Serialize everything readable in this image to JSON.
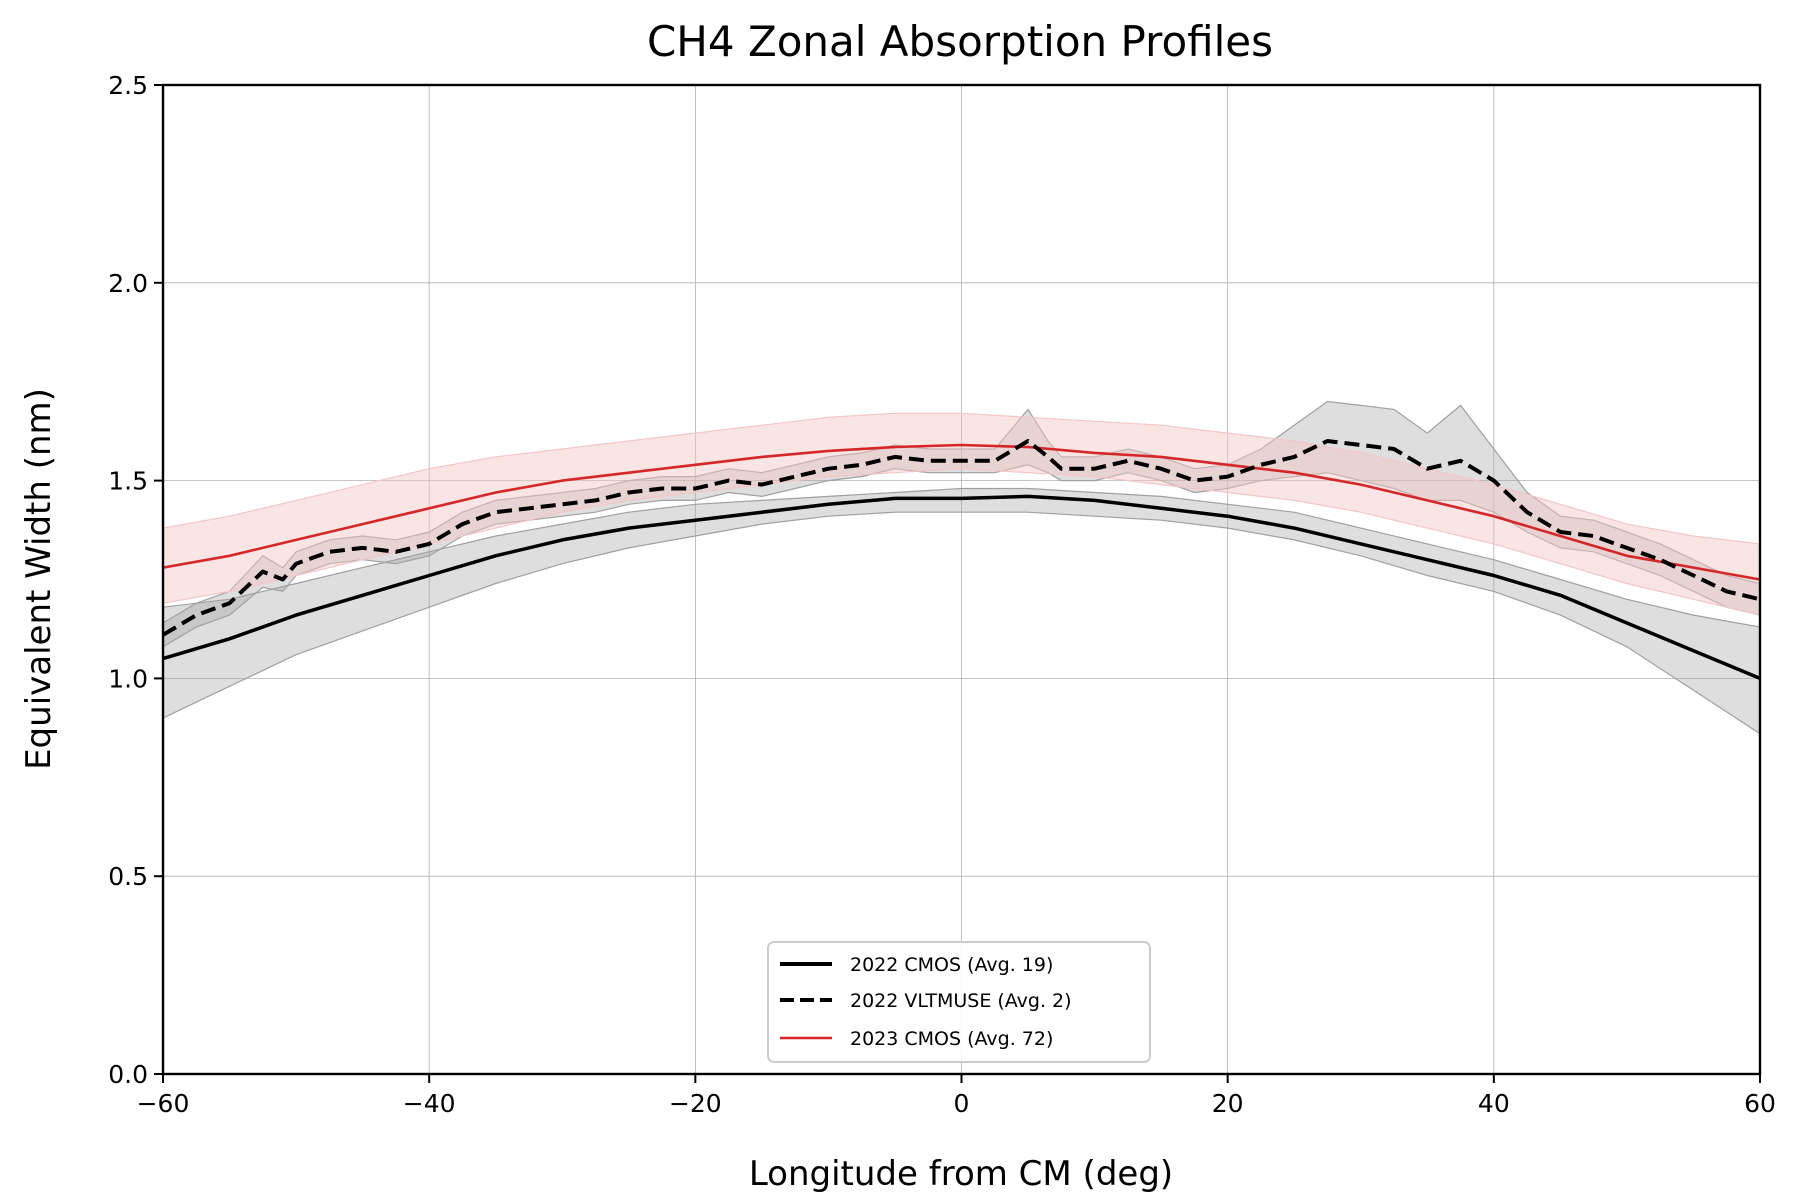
{
  "chart_data": {
    "type": "line",
    "title": "CH4 Zonal Absorption Profiles",
    "xlabel": "Longitude from CM (deg)",
    "ylabel": "Equivalent Width (nm)",
    "xlim": [
      -60,
      60
    ],
    "ylim": [
      0,
      2.5
    ],
    "xticks": [
      -60,
      -40,
      -20,
      0,
      20,
      40,
      60
    ],
    "xtick_labels": [
      "−60",
      "−40",
      "−20",
      "0",
      "20",
      "40",
      "60"
    ],
    "yticks": [
      0,
      0.5,
      1,
      1.5,
      2,
      2.5
    ],
    "ytick_labels": [
      "0.0",
      "0.5",
      "1.0",
      "1.5",
      "2.0",
      "2.5"
    ],
    "grid": true,
    "legend_position": "bottom-center",
    "series": [
      {
        "name": "2022 CMOS (Avg. 19)",
        "color": "#000000",
        "style": "solid",
        "band_color": "#a0a0a0",
        "x": [
          -60,
          -55,
          -50,
          -45,
          -40,
          -35,
          -30,
          -25,
          -20,
          -15,
          -10,
          -5,
          0,
          5,
          10,
          15,
          20,
          25,
          30,
          35,
          40,
          45,
          50,
          55,
          60
        ],
        "y": [
          1.05,
          1.1,
          1.16,
          1.21,
          1.26,
          1.31,
          1.35,
          1.38,
          1.4,
          1.42,
          1.44,
          1.455,
          1.455,
          1.46,
          1.45,
          1.43,
          1.41,
          1.38,
          1.34,
          1.3,
          1.26,
          1.21,
          1.14,
          1.07,
          1.0
        ],
        "y_lower": [
          0.9,
          0.98,
          1.06,
          1.12,
          1.18,
          1.24,
          1.29,
          1.33,
          1.36,
          1.39,
          1.41,
          1.42,
          1.42,
          1.42,
          1.41,
          1.4,
          1.38,
          1.35,
          1.31,
          1.26,
          1.22,
          1.16,
          1.08,
          0.97,
          0.86
        ],
        "y_upper": [
          1.18,
          1.2,
          1.24,
          1.28,
          1.32,
          1.36,
          1.39,
          1.42,
          1.44,
          1.45,
          1.46,
          1.47,
          1.48,
          1.48,
          1.47,
          1.46,
          1.44,
          1.42,
          1.38,
          1.34,
          1.3,
          1.25,
          1.2,
          1.16,
          1.13
        ]
      },
      {
        "name": "2022 VLTMUSE (Avg. 2)",
        "color": "#000000",
        "style": "dashed",
        "band_color": "#a0a0a0",
        "x": [
          -60,
          -57.5,
          -55,
          -52.5,
          -51,
          -50,
          -47.5,
          -45,
          -42.5,
          -40,
          -37.5,
          -35,
          -32.5,
          -30,
          -27.5,
          -25,
          -22.5,
          -20,
          -17.5,
          -15,
          -12.5,
          -10,
          -7.5,
          -5,
          -2.5,
          0,
          2.5,
          5,
          6.5,
          7.5,
          10,
          12.5,
          15,
          17.5,
          20,
          22.5,
          25,
          27.5,
          30,
          32.5,
          35,
          37.5,
          40,
          42.5,
          45,
          47.5,
          50,
          52.5,
          55,
          57.5,
          60
        ],
        "y": [
          1.11,
          1.16,
          1.19,
          1.27,
          1.25,
          1.29,
          1.32,
          1.33,
          1.32,
          1.34,
          1.39,
          1.42,
          1.43,
          1.44,
          1.45,
          1.47,
          1.48,
          1.48,
          1.5,
          1.49,
          1.51,
          1.53,
          1.54,
          1.56,
          1.55,
          1.55,
          1.55,
          1.6,
          1.56,
          1.53,
          1.53,
          1.55,
          1.53,
          1.5,
          1.51,
          1.54,
          1.56,
          1.6,
          1.59,
          1.58,
          1.53,
          1.55,
          1.5,
          1.42,
          1.37,
          1.36,
          1.33,
          1.3,
          1.26,
          1.22,
          1.2
        ],
        "y_lower": [
          1.08,
          1.13,
          1.16,
          1.23,
          1.22,
          1.26,
          1.29,
          1.3,
          1.29,
          1.31,
          1.36,
          1.39,
          1.4,
          1.41,
          1.42,
          1.44,
          1.45,
          1.45,
          1.47,
          1.46,
          1.48,
          1.5,
          1.51,
          1.53,
          1.52,
          1.52,
          1.52,
          1.54,
          1.52,
          1.5,
          1.5,
          1.52,
          1.5,
          1.47,
          1.48,
          1.5,
          1.51,
          1.52,
          1.5,
          1.48,
          1.45,
          1.45,
          1.42,
          1.37,
          1.33,
          1.32,
          1.29,
          1.26,
          1.22,
          1.18,
          1.16
        ],
        "y_upper": [
          1.14,
          1.19,
          1.22,
          1.31,
          1.28,
          1.32,
          1.35,
          1.36,
          1.35,
          1.37,
          1.42,
          1.45,
          1.46,
          1.47,
          1.48,
          1.5,
          1.51,
          1.51,
          1.53,
          1.52,
          1.54,
          1.56,
          1.57,
          1.59,
          1.58,
          1.58,
          1.58,
          1.68,
          1.6,
          1.56,
          1.56,
          1.58,
          1.56,
          1.53,
          1.54,
          1.58,
          1.64,
          1.7,
          1.69,
          1.68,
          1.62,
          1.69,
          1.58,
          1.47,
          1.41,
          1.4,
          1.37,
          1.34,
          1.3,
          1.26,
          1.24
        ]
      },
      {
        "name": "2023 CMOS (Avg. 72)",
        "color": "#d62728",
        "style": "solid",
        "band_color": "#f4c6c6",
        "x": [
          -60,
          -55,
          -50,
          -45,
          -40,
          -35,
          -30,
          -25,
          -20,
          -15,
          -10,
          -5,
          0,
          5,
          10,
          15,
          20,
          25,
          30,
          35,
          40,
          45,
          50,
          55,
          60
        ],
        "y": [
          1.28,
          1.31,
          1.35,
          1.39,
          1.43,
          1.47,
          1.5,
          1.52,
          1.54,
          1.56,
          1.575,
          1.585,
          1.59,
          1.585,
          1.57,
          1.56,
          1.54,
          1.52,
          1.49,
          1.45,
          1.41,
          1.36,
          1.31,
          1.28,
          1.25
        ],
        "y_lower": [
          1.19,
          1.22,
          1.26,
          1.3,
          1.34,
          1.38,
          1.42,
          1.45,
          1.47,
          1.49,
          1.51,
          1.52,
          1.53,
          1.52,
          1.51,
          1.49,
          1.47,
          1.45,
          1.42,
          1.38,
          1.34,
          1.29,
          1.24,
          1.2,
          1.16
        ],
        "y_upper": [
          1.38,
          1.41,
          1.45,
          1.49,
          1.53,
          1.56,
          1.58,
          1.6,
          1.62,
          1.64,
          1.66,
          1.67,
          1.67,
          1.66,
          1.65,
          1.64,
          1.62,
          1.6,
          1.57,
          1.53,
          1.49,
          1.44,
          1.39,
          1.36,
          1.34
        ]
      }
    ]
  }
}
